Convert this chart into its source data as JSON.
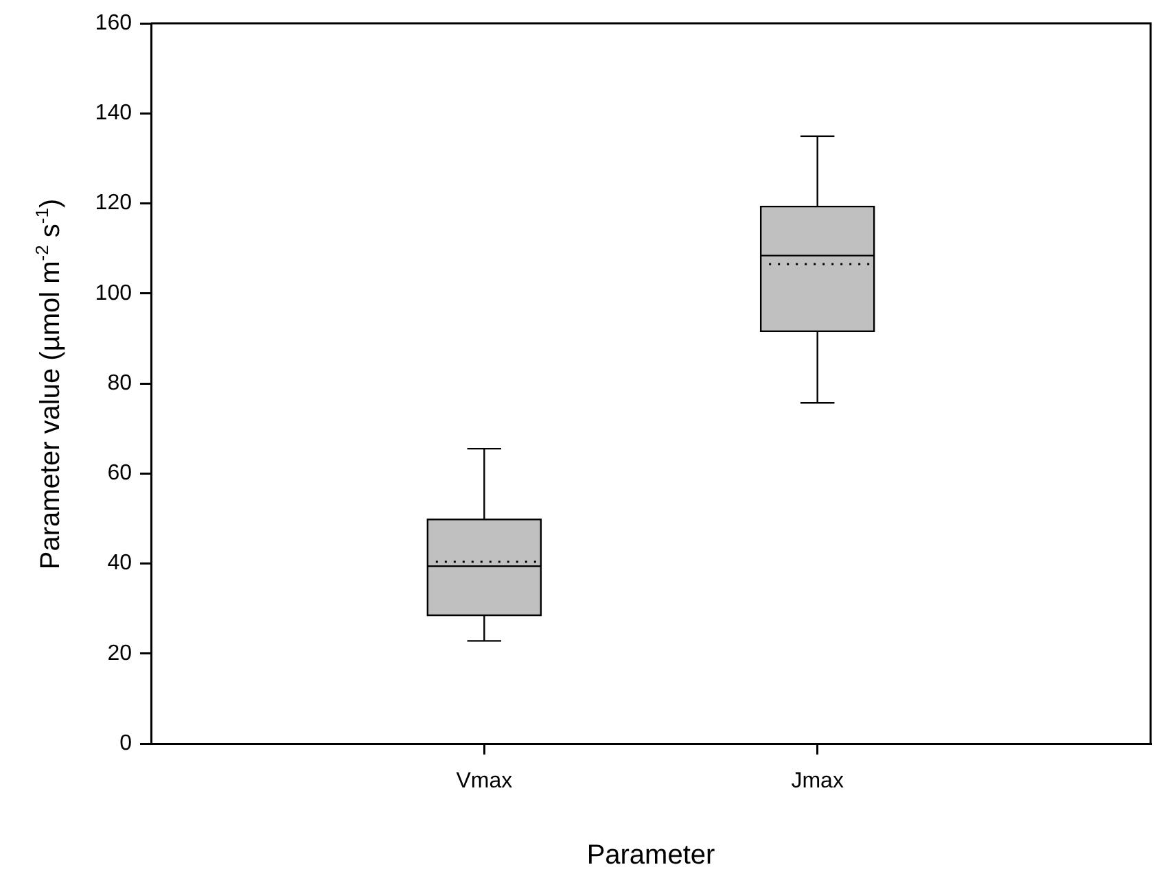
{
  "chart_data": {
    "type": "box",
    "xlabel": "Parameter",
    "ylabel": "Parameter value (µmol m$^{-2}$ s$^{-1}$)",
    "categories": [
      "Vmax",
      "Jmax"
    ],
    "color": "#c0c0c0",
    "boxes": [
      {
        "low": 22.8,
        "q1": 28.5,
        "median": 39.4,
        "q3": 49.8,
        "high": 65.5,
        "mean": 40.4
      },
      {
        "low": 75.7,
        "q1": 91.6,
        "median": 108.4,
        "q3": 119.3,
        "high": 134.9,
        "mean": 106.5
      }
    ],
    "ylim": [
      0,
      160
    ],
    "yticks": [
      0,
      20,
      40,
      60,
      80,
      100,
      120,
      140,
      160
    ]
  }
}
